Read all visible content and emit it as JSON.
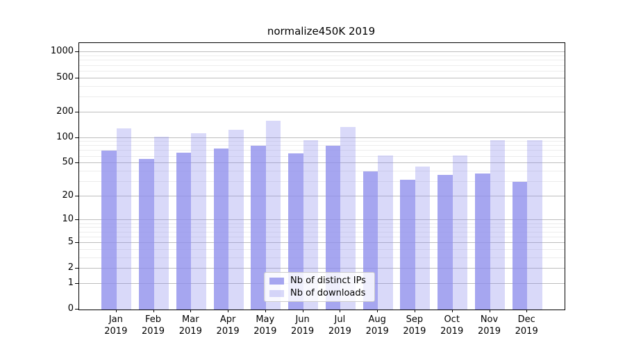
{
  "title": "normalize450K 2019",
  "chart_data": {
    "type": "bar",
    "title": "normalize450K 2019",
    "xlabel": "",
    "ylabel": "",
    "y_scale": "log1p",
    "ylim": [
      0,
      1285
    ],
    "grid": true,
    "legend_position": "lower-center",
    "categories": [
      "Jan",
      "Feb",
      "Mar",
      "Apr",
      "May",
      "Jun",
      "Jul",
      "Aug",
      "Sep",
      "Oct",
      "Nov",
      "Dec"
    ],
    "category_year": "2019",
    "series": [
      {
        "name": "Nb of distinct IPs",
        "color": "#8d8dec",
        "alpha": 0.78,
        "values": [
          71,
          56,
          67,
          75,
          80,
          65,
          80,
          40,
          32,
          36,
          38,
          30
        ]
      },
      {
        "name": "Nb of downloads",
        "color": "#8d8dec",
        "alpha": 0.33,
        "values": [
          129,
          102,
          113,
          125,
          160,
          93,
          135,
          62,
          46,
          62,
          93,
          94
        ]
      }
    ],
    "y_major_ticks": [
      0,
      1,
      2,
      5,
      10,
      20,
      50,
      100,
      200,
      500,
      1000
    ],
    "y_minor_ticks": [
      3,
      4,
      6,
      7,
      8,
      9,
      30,
      40,
      60,
      70,
      80,
      90,
      300,
      400,
      600,
      700,
      800,
      900
    ]
  },
  "colors": {
    "bar_base": "#8d8dec",
    "grid_major": "#bdbdbd",
    "grid_minor": "#ececec",
    "spine": "#000000",
    "background": "#ffffff"
  }
}
